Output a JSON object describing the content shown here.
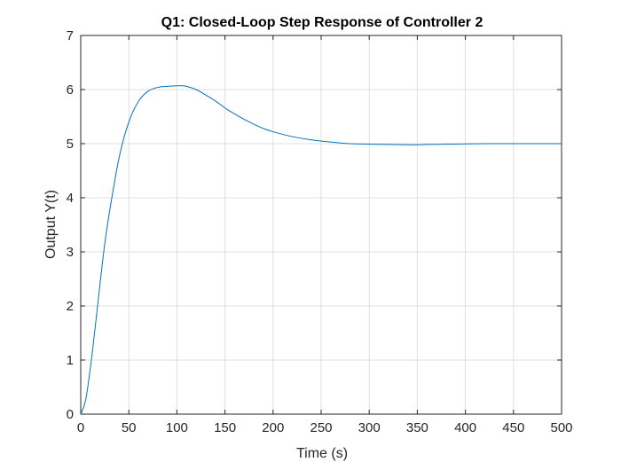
{
  "chart_data": {
    "type": "line",
    "title": "Q1: Closed-Loop Step Response of Controller 2",
    "xlabel": "Time (s)",
    "ylabel": "Output Y(t)",
    "xlim": [
      0,
      500
    ],
    "ylim": [
      0,
      7
    ],
    "xticks": [
      0,
      50,
      100,
      150,
      200,
      250,
      300,
      350,
      400,
      450,
      500
    ],
    "yticks": [
      0,
      1,
      2,
      3,
      4,
      5,
      6,
      7
    ],
    "xtick_labels": [
      "0",
      "50",
      "100",
      "150",
      "200",
      "250",
      "300",
      "350",
      "400",
      "450",
      "500"
    ],
    "ytick_labels": [
      "0",
      "1",
      "2",
      "3",
      "4",
      "5",
      "6",
      "7"
    ],
    "grid": true,
    "legend": "none",
    "colors": {
      "line": "#0072BD",
      "grid": "#dfdfdf",
      "axes": "#262626"
    },
    "series": [
      {
        "x": [
          0,
          5,
          10,
          15,
          20,
          25,
          30,
          40,
          50,
          60,
          70,
          80,
          90,
          100,
          105,
          110,
          120,
          130,
          140,
          150,
          160,
          170,
          180,
          190,
          200,
          220,
          240,
          260,
          280,
          300,
          320,
          340,
          350,
          360,
          380,
          400,
          420,
          440,
          460,
          480,
          500
        ],
        "y": [
          0,
          0.25,
          0.85,
          1.6,
          2.4,
          3.15,
          3.75,
          4.75,
          5.4,
          5.78,
          5.97,
          6.04,
          6.06,
          6.07,
          6.07,
          6.06,
          6.0,
          5.9,
          5.79,
          5.66,
          5.55,
          5.45,
          5.36,
          5.28,
          5.22,
          5.13,
          5.07,
          5.03,
          5.0,
          4.99,
          4.985,
          4.98,
          4.98,
          4.985,
          4.99,
          4.995,
          5.0,
          5.0,
          5.0,
          5.0,
          5.0
        ]
      }
    ]
  }
}
